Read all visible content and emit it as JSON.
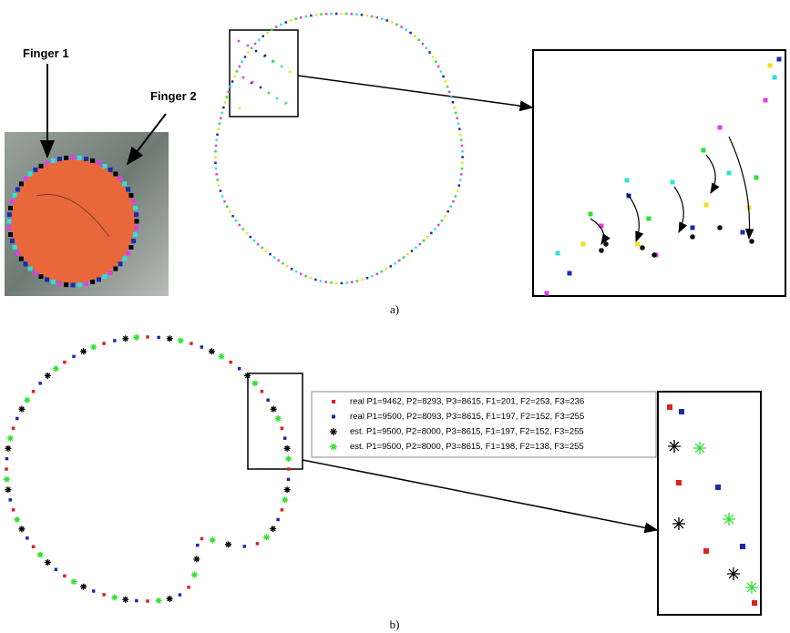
{
  "panel_a": {
    "labels": [
      "Finger 1",
      "Finger 2"
    ],
    "caption": "a)"
  },
  "panel_b": {
    "legend": [
      {
        "text": "real P1=9462, P2=8293, P3=8615, F1=201, F2=253, F3=236",
        "color": "#e02020"
      },
      {
        "text": "real P1=9500, P2=8093, P3=8615, F1=197, F2=152, F3=255",
        "color": "#1a2ab0"
      },
      {
        "text": "est. P1=9500, P2=8000, P3=8615, F1=197, F2=152, F3=255",
        "color": "#000000"
      },
      {
        "text": "est. P1=9500, P2=8000, P3=8615, F1=198, F2=138, F3=255",
        "color": "#30e030"
      }
    ],
    "caption": "b)"
  }
}
